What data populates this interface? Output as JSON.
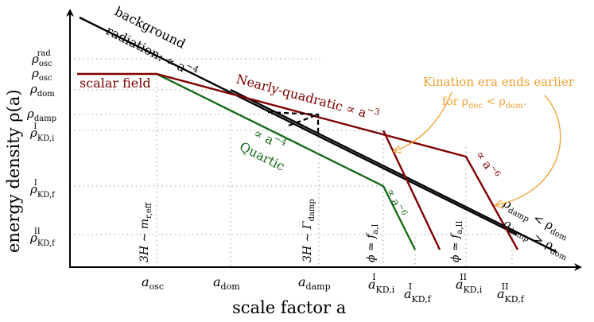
{
  "axes": {
    "ylabel": "energy density ρ(a)",
    "xlabel": "scale factor a"
  },
  "y_ticks": {
    "rho_osc_rad": {
      "main": "ρ",
      "sub": "osc",
      "sup": "rad"
    },
    "rho_osc": {
      "main": "ρ",
      "sub": "osc"
    },
    "rho_dom": {
      "main": "ρ",
      "sub": "dom"
    },
    "rho_damp": {
      "main": "ρ",
      "sub": "damp"
    },
    "rho_kd_i_I": {
      "main": "ρ",
      "sub": "KD,i",
      "sup": "I"
    },
    "rho_kd_f_I": {
      "main": "ρ",
      "sub": "KD,f",
      "sup": "I"
    },
    "rho_kd_f_II": {
      "main": "ρ",
      "sub": "KD,f",
      "sup": "II"
    }
  },
  "x_ticks": {
    "a_osc": {
      "main": "a",
      "sub": "osc"
    },
    "a_dom": {
      "main": "a",
      "sub": "dom"
    },
    "a_damp": {
      "main": "a",
      "sub": "damp"
    },
    "a_kd_i_I": {
      "main": "a",
      "sub": "KD,i",
      "sup": "I"
    },
    "a_kd_f_I": {
      "main": "a",
      "sub": "KD,f",
      "sup": "I"
    },
    "a_kd_i_II": {
      "main": "a",
      "sub": "KD,i",
      "sup": "II"
    },
    "a_kd_f_II": {
      "main": "a",
      "sub": "KD,f",
      "sup": "II"
    }
  },
  "labels": {
    "background_1": "background",
    "background_2": "radiation: ∝ a",
    "background_exp": "−4",
    "scalar_field": "scalar field",
    "nearly_quadratic": "Nearly-quadratic ∝ a",
    "nearly_quadratic_exp": "−3",
    "quartic_scaling": "∝ a",
    "quartic_scaling_exp": "−4",
    "quartic": "Quartic",
    "kination_scaling_I": "∝ a",
    "kination_scaling_I_exp": "−6",
    "kination_scaling_II": "∝ a",
    "kination_scaling_II_exp": "−6",
    "v_osc": "3H ∼ m",
    "v_osc_sub": "r,eff",
    "v_damp": "3H ∼ Γ",
    "v_damp_sub": "damp",
    "v_phi_I": "ϕ ≃ f",
    "v_phi_I_sub": "a,I",
    "v_phi_II": "ϕ ≃ f",
    "v_phi_II_sub": "a,II",
    "rhs_1_main": "ρ",
    "rhs_1_sub": "damp",
    "rhs_1_rel": " < ρ",
    "rhs_1_sub2": "dom",
    "rhs_2_main": "ρ",
    "rhs_2_sub": "damp",
    "rhs_2_rel": " > ρ",
    "rhs_2_sub2": "dom",
    "annot_1": "Kination era ends earlier",
    "annot_2_a": "for ρ",
    "annot_2_sub": "dec",
    "annot_2_b": " < ρ",
    "annot_2_sub2": "dom",
    "annot_2_c": "."
  },
  "colors": {
    "axis": "#000000",
    "radiation": "#000000",
    "scalar_quadratic": "#7f0000",
    "scalar_quartic": "#1a6b1a",
    "annotation": "#f0a030",
    "guide": "#b3b3b3"
  }
}
